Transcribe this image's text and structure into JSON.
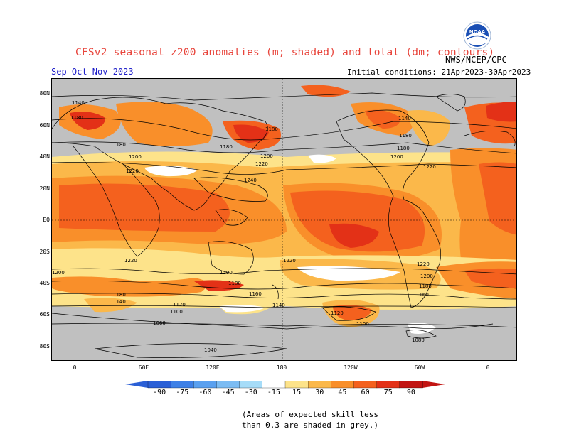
{
  "header": {
    "title": "CFSv2 seasonal z200 anomalies (m; shaded) and total (dm; contours)",
    "agency": "NWS/NCEP/CPC",
    "season": "Sep-Oct-Nov 2023",
    "initial_conditions": "Initial conditions: 21Apr2023-30Apr2023",
    "logo_text": "NOAA"
  },
  "axes": {
    "lat_labels": [
      "80N",
      "60N",
      "40N",
      "20N",
      "EQ",
      "20S",
      "40S",
      "60S",
      "80S"
    ],
    "lon_labels": [
      "0",
      "60E",
      "120E",
      "180",
      "120W",
      "60W",
      "0"
    ]
  },
  "colorbar": {
    "labels": [
      "-90",
      "-75",
      "-60",
      "-45",
      "-30",
      "-15",
      "15",
      "30",
      "45",
      "60",
      "75",
      "90"
    ],
    "colors": [
      "#2a5fd6",
      "#3e80e6",
      "#5aa0ef",
      "#7cbcf3",
      "#a6dcf8",
      "#ffffff",
      "#fde38a",
      "#fbb84a",
      "#f98f2a",
      "#f4611e",
      "#e33117",
      "#c21412"
    ]
  },
  "contour_labels": [
    "1140",
    "1180",
    "1180",
    "1200",
    "1220",
    "1180",
    "1180",
    "1200",
    "1220",
    "1240",
    "1140",
    "1180",
    "1180",
    "1200",
    "1220",
    "1220",
    "1200",
    "1180",
    "1160",
    "1220",
    "1200",
    "1180",
    "1160",
    "1140",
    "1180",
    "1140",
    "1120",
    "1100",
    "1060",
    "1040",
    "1200",
    "1220",
    "1120",
    "1100",
    "1080"
  ],
  "footnote": {
    "line1": "(Areas of expected skill less",
    "line2": "than 0.3 are shaded in grey.)"
  },
  "colors": {
    "grey_mask": "#c0c0c0",
    "title_color": "#e8453c",
    "season_color": "#1c1cc8"
  }
}
